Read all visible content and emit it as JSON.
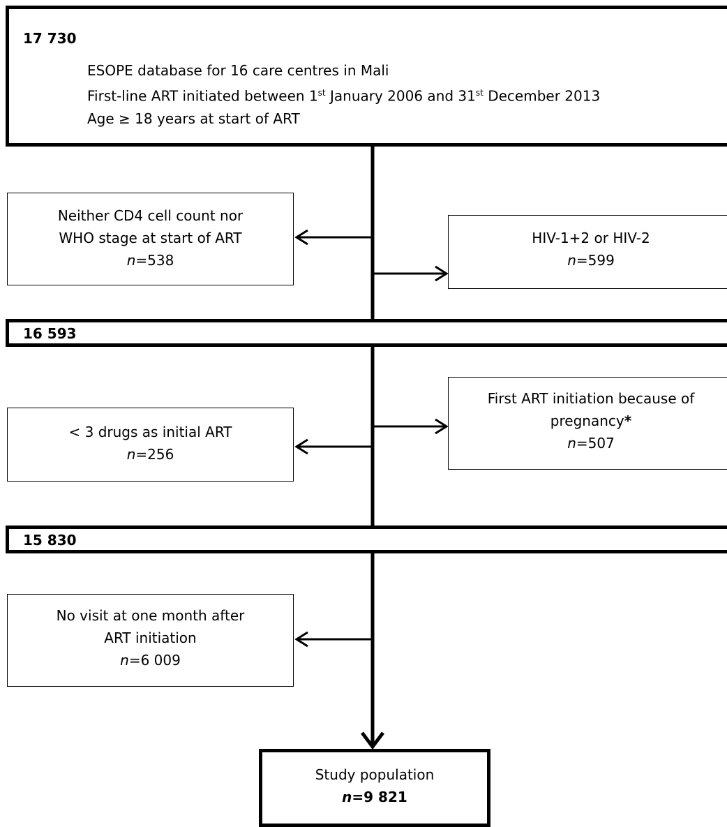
{
  "top_box": {
    "count": "17 730",
    "line1": "ESOPE database for 16 care centres in Mali",
    "line2_before_first_sup": "First-line ART initiated between 1",
    "line2_sup1": "st",
    "line2_mid": " January 2006 and 31",
    "line2_sup2": "st",
    "line2_after": " December 2013",
    "line3": "Age ≥ 18 years at start of ART"
  },
  "exclusion_1": {
    "line1": "Neither CD4 cell count nor",
    "line2": "WHO stage at start of ART",
    "n_label": "n",
    "n_value": "=538"
  },
  "exclusion_2": {
    "line1": "HIV-1+2 or HIV-2",
    "n_label": "n",
    "n_value": "=599"
  },
  "step_2": {
    "count": "16 593"
  },
  "exclusion_3": {
    "line1": "< 3 drugs as initial ART",
    "n_label": "n",
    "n_value": "=256"
  },
  "exclusion_4": {
    "line1": "First ART initiation because of",
    "line2": "pregnancy",
    "asterisk": "*",
    "n_label": "n",
    "n_value": "=507"
  },
  "step_3": {
    "count": "15 830"
  },
  "exclusion_5": {
    "line1": "No visit at one month after",
    "line2": "ART initiation",
    "n_label": "n",
    "n_value": "=6 009"
  },
  "final_box": {
    "label": "Study population",
    "n_label": "n",
    "n_value": "=9 821"
  }
}
